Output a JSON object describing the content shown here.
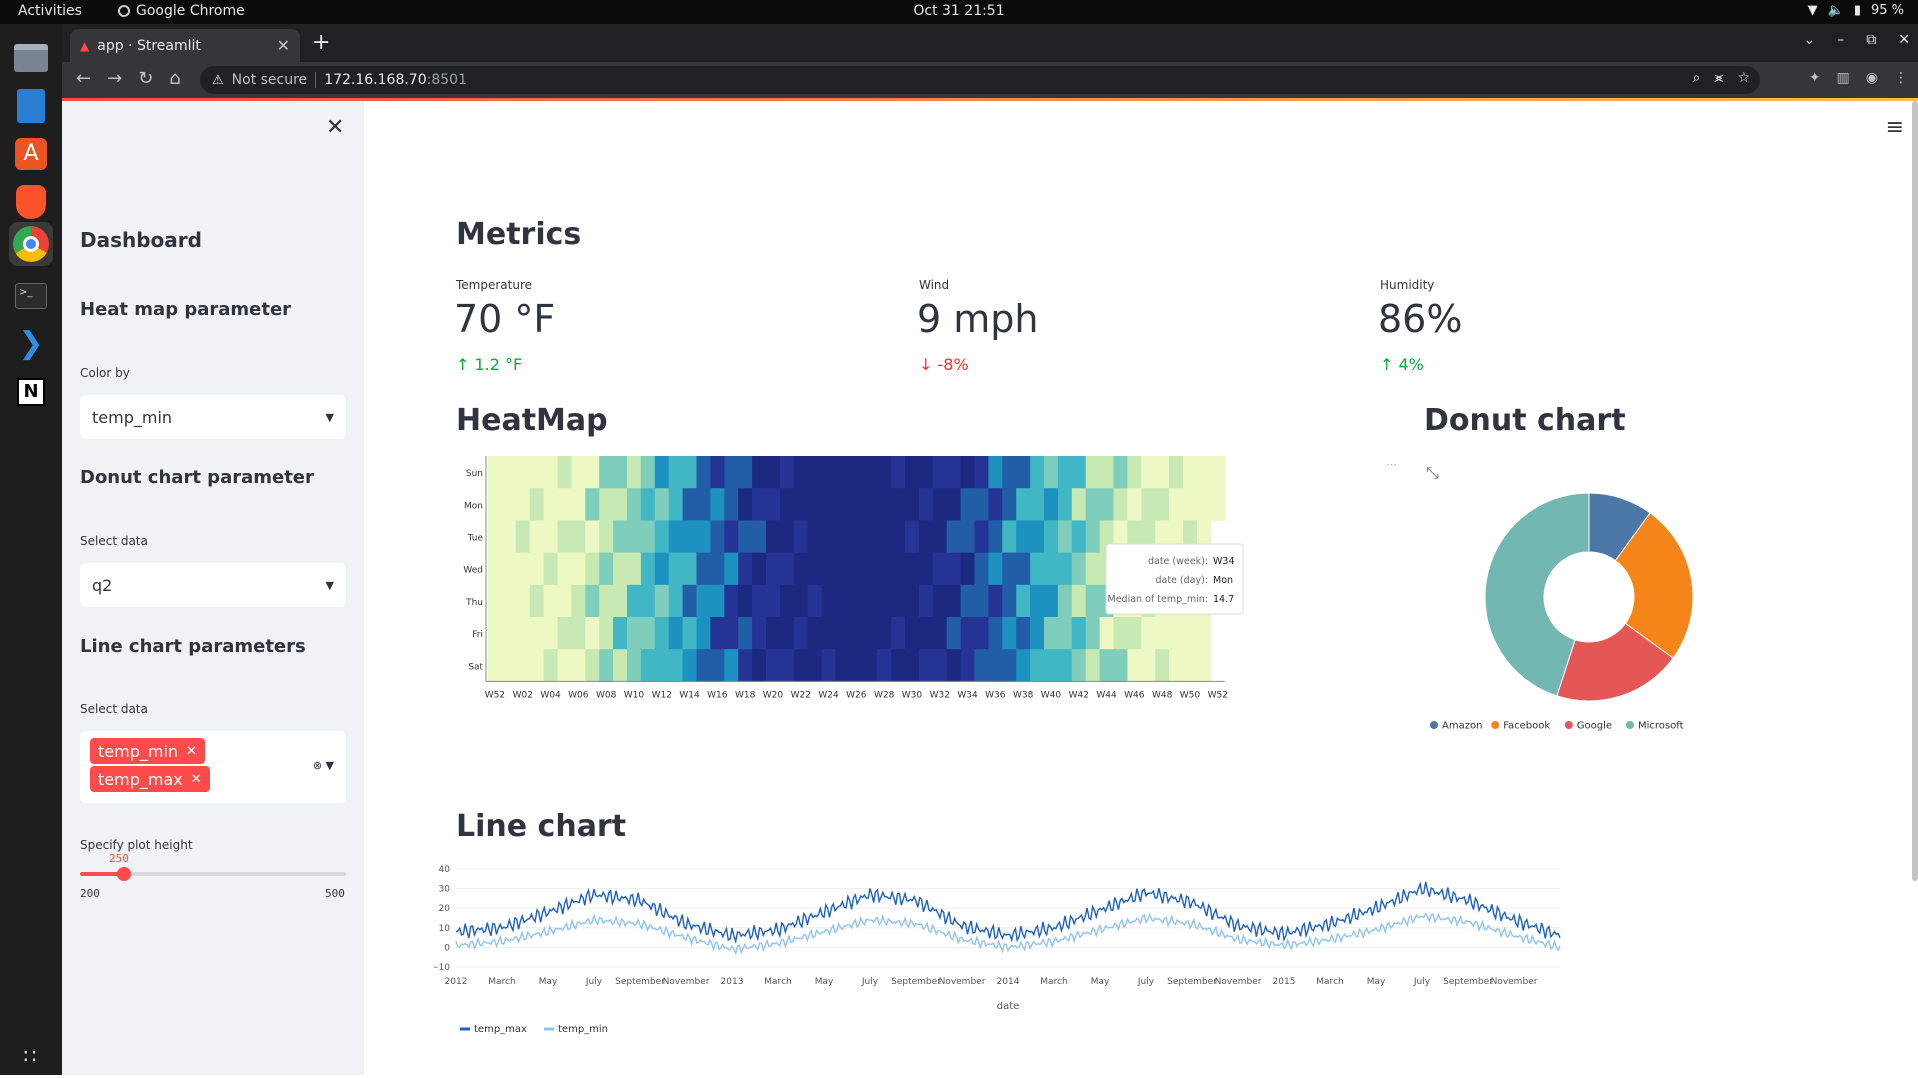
{
  "os": {
    "activities": "Activities",
    "app_name": "Google Chrome",
    "clock": "Oct 31  21:51",
    "battery": "95 %"
  },
  "browser": {
    "tab_title": "app · Streamlit",
    "security": "Not secure",
    "url_host": "172.16.168.70",
    "url_port": ":8501"
  },
  "sidebar": {
    "title": "Dashboard",
    "heatmap_header": "Heat map parameter",
    "color_by_label": "Color by",
    "color_by_value": "temp_min",
    "donut_header": "Donut chart parameter",
    "donut_select_label": "Select data",
    "donut_select_value": "q2",
    "line_header": "Line chart parameters",
    "line_select_label": "Select data",
    "line_selected": [
      "temp_min",
      "temp_max"
    ],
    "height_label": "Specify plot height",
    "height_value": 250,
    "height_min": 200,
    "height_max": 500
  },
  "metrics": {
    "title": "Metrics",
    "items": [
      {
        "label": "Temperature",
        "value": "70 °F",
        "delta": "1.2 °F",
        "direction": "up"
      },
      {
        "label": "Wind",
        "value": "9 mph",
        "delta": "-8%",
        "direction": "down"
      },
      {
        "label": "Humidity",
        "value": "86%",
        "delta": "4%",
        "direction": "up"
      }
    ]
  },
  "heatmap": {
    "title": "HeatMap",
    "rows": [
      "Sun",
      "Mon",
      "Tue",
      "Wed",
      "Thu",
      "Fri",
      "Sat"
    ],
    "x_ticks": [
      "W52",
      "W02",
      "W04",
      "W06",
      "W08",
      "W10",
      "W12",
      "W14",
      "W16",
      "W18",
      "W20",
      "W22",
      "W24",
      "W26",
      "W28",
      "W30",
      "W32",
      "W34",
      "W36",
      "W38",
      "W40",
      "W42",
      "W44",
      "W46",
      "W48",
      "W50",
      "W52"
    ],
    "tooltip": [
      {
        "label": "date (week):",
        "value": "W34"
      },
      {
        "label": "date (day):",
        "value": "Mon"
      },
      {
        "label": "Median of temp_min:",
        "value": "14.7"
      }
    ],
    "colors": [
      "#eef8c4",
      "#c7e9b4",
      "#7fcdbb",
      "#41b6c4",
      "#1d91c0",
      "#225ea8",
      "#253494",
      "#1b2a80"
    ]
  },
  "donut": {
    "title": "Donut chart",
    "expand_icon": "expand-icon"
  },
  "line": {
    "title": "Line chart",
    "x_title": "date"
  },
  "chart_data": [
    {
      "type": "pie",
      "title": "",
      "categories": [
        "Amazon",
        "Facebook",
        "Google",
        "Microsoft"
      ],
      "values": [
        10,
        25,
        20,
        45
      ],
      "colors": [
        "#4c78a8",
        "#f58518",
        "#e45756",
        "#72b7b2"
      ],
      "legend": "bottom"
    },
    {
      "type": "line",
      "title": "",
      "xlabel": "date",
      "ylabel": "",
      "ylim": [
        -10,
        40
      ],
      "y_ticks": [
        -10,
        0,
        10,
        20,
        30,
        40
      ],
      "x_tick_labels": [
        "2012",
        "March",
        "May",
        "July",
        "September",
        "November",
        "2013",
        "March",
        "May",
        "July",
        "September",
        "November",
        "2014",
        "March",
        "May",
        "July",
        "September",
        "November",
        "2015",
        "March",
        "May",
        "July",
        "September",
        "November"
      ],
      "x": [
        "2012-01",
        "2012-03",
        "2012-05",
        "2012-07",
        "2012-09",
        "2012-11",
        "2013-01",
        "2013-03",
        "2013-05",
        "2013-07",
        "2013-09",
        "2013-11",
        "2014-01",
        "2014-03",
        "2014-05",
        "2014-07",
        "2014-09",
        "2014-11",
        "2015-01",
        "2015-03",
        "2015-05",
        "2015-07",
        "2015-09",
        "2015-11",
        "2015-12"
      ],
      "series": [
        {
          "name": "temp_max",
          "color": "#1f5fbf",
          "values": [
            8,
            10,
            18,
            27,
            24,
            12,
            6,
            9,
            18,
            27,
            24,
            11,
            6,
            10,
            19,
            28,
            23,
            11,
            7,
            12,
            20,
            30,
            24,
            14,
            6
          ]
        },
        {
          "name": "temp_min",
          "color": "#8fc3f0",
          "values": [
            1,
            3,
            8,
            14,
            12,
            5,
            -1,
            2,
            8,
            14,
            12,
            4,
            0,
            3,
            9,
            15,
            12,
            4,
            1,
            4,
            9,
            16,
            13,
            6,
            0
          ]
        }
      ],
      "legend": "bottom-left"
    }
  ]
}
